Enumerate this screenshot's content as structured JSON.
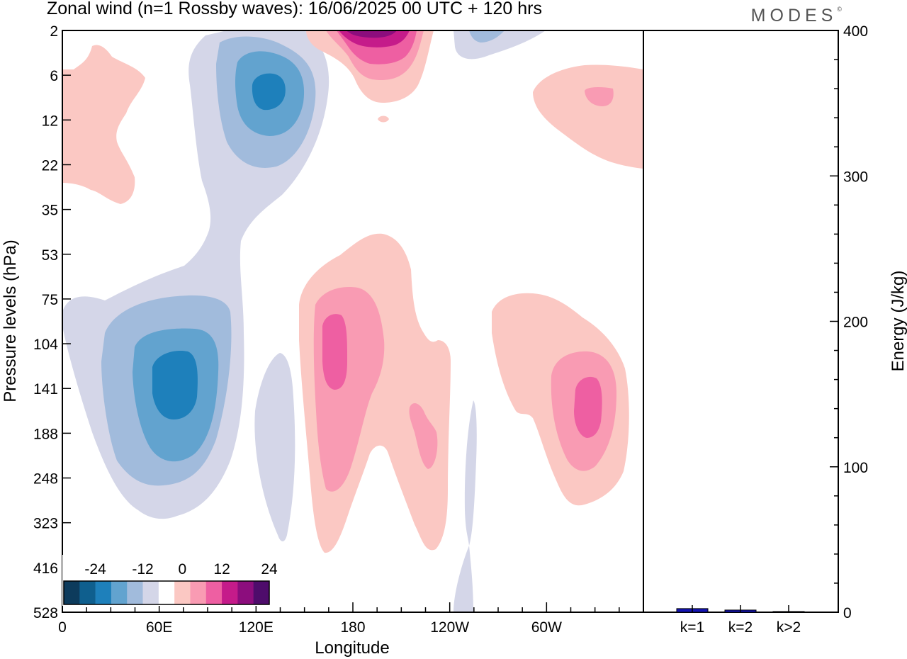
{
  "chart_data": {
    "type": "contour",
    "title": "Zonal wind (n=1 Rossby waves):  16/06/2025  00 UTC  + 120 hrs",
    "brand": "MODES",
    "brand_mark": "©",
    "xlabel": "Longitude",
    "ylabel": "Pressure levels (hPa)",
    "x_ticks": [
      "0",
      "60E",
      "120E",
      "180",
      "120W",
      "60W"
    ],
    "x_tick_deg": [
      0,
      60,
      120,
      180,
      240,
      300
    ],
    "xlim": [
      0,
      360
    ],
    "y_ticks": [
      "2",
      "6",
      "12",
      "22",
      "35",
      "53",
      "75",
      "104",
      "141",
      "188",
      "248",
      "323",
      "416",
      "528"
    ],
    "colorbar": {
      "labels": [
        "-24",
        "-12",
        "0",
        "12",
        "24"
      ],
      "label_levels": [
        -24,
        -12,
        0,
        12,
        24
      ],
      "levels": [
        -28,
        -24,
        -20,
        -16,
        -12,
        -8,
        -4,
        4,
        8,
        12,
        16,
        20,
        24,
        28
      ],
      "colors": [
        "#0d3b5c",
        "#0f5f8e",
        "#1e80bb",
        "#62a3cf",
        "#a1bbdc",
        "#d4d6e8",
        "#ffffff",
        "#fbc8c3",
        "#f99bb3",
        "#ee5fa2",
        "#c51b8a",
        "#8c0d7d",
        "#4e0c6b"
      ]
    },
    "features": [
      {
        "sign": "negative",
        "lon_center": 65,
        "pressure_center": 141,
        "min_value": -20
      },
      {
        "sign": "negative",
        "lon_center": 125,
        "pressure_center": 8,
        "min_value": -20
      },
      {
        "sign": "positive",
        "lon_center": 168,
        "pressure_center": 110,
        "max_value": 12
      },
      {
        "sign": "positive",
        "lon_center": 325,
        "pressure_center": 150,
        "max_value": 12
      },
      {
        "sign": "positive",
        "lon_center": 192,
        "pressure_center": 2,
        "max_value": 24
      },
      {
        "sign": "positive",
        "lon_center": 15,
        "pressure_center": 8,
        "max_value": 4
      },
      {
        "sign": "positive",
        "lon_center": 330,
        "pressure_center": 10,
        "max_value": 8
      }
    ],
    "energy_panel": {
      "type": "bar",
      "ylabel": "Energy (J/kg)",
      "ylim": [
        0,
        400
      ],
      "y_ticks": [
        "0",
        "100",
        "200",
        "300",
        "400"
      ],
      "y_tick_values": [
        0,
        100,
        200,
        300,
        400
      ],
      "categories": [
        "k=1",
        "k=2",
        "k>2"
      ],
      "values": [
        2.5,
        1.5,
        0.5
      ],
      "bar_color": "#1414b4"
    }
  }
}
